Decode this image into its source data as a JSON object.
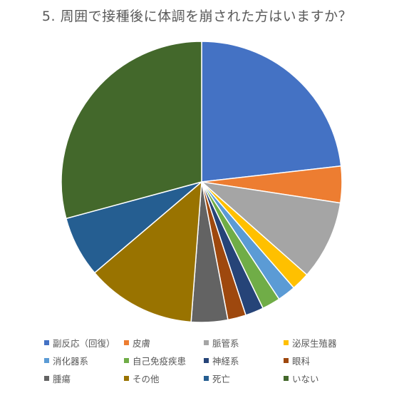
{
  "chart_data": {
    "type": "pie",
    "title": "5. 周囲で接種後に体調を崩された方はいますか？",
    "legend_position": "bottom",
    "categories": [
      "副反応（回復）",
      "皮膚",
      "脈管系",
      "泌尿生殖器",
      "消化器系",
      "自己免疫疾患",
      "神経系",
      "眼科",
      "腫瘍",
      "その他",
      "死亡",
      "いない"
    ],
    "values": [
      23.2,
      4.2,
      9.1,
      2.1,
      2.1,
      2.1,
      2.1,
      2.1,
      4.2,
      12.6,
      7.0,
      29.2
    ],
    "colors": [
      "#4472C4",
      "#ED7D31",
      "#A5A5A5",
      "#FFC000",
      "#5B9BD5",
      "#70AD47",
      "#264478",
      "#9E480E",
      "#636363",
      "#997300",
      "#255E91",
      "#43682B"
    ]
  }
}
